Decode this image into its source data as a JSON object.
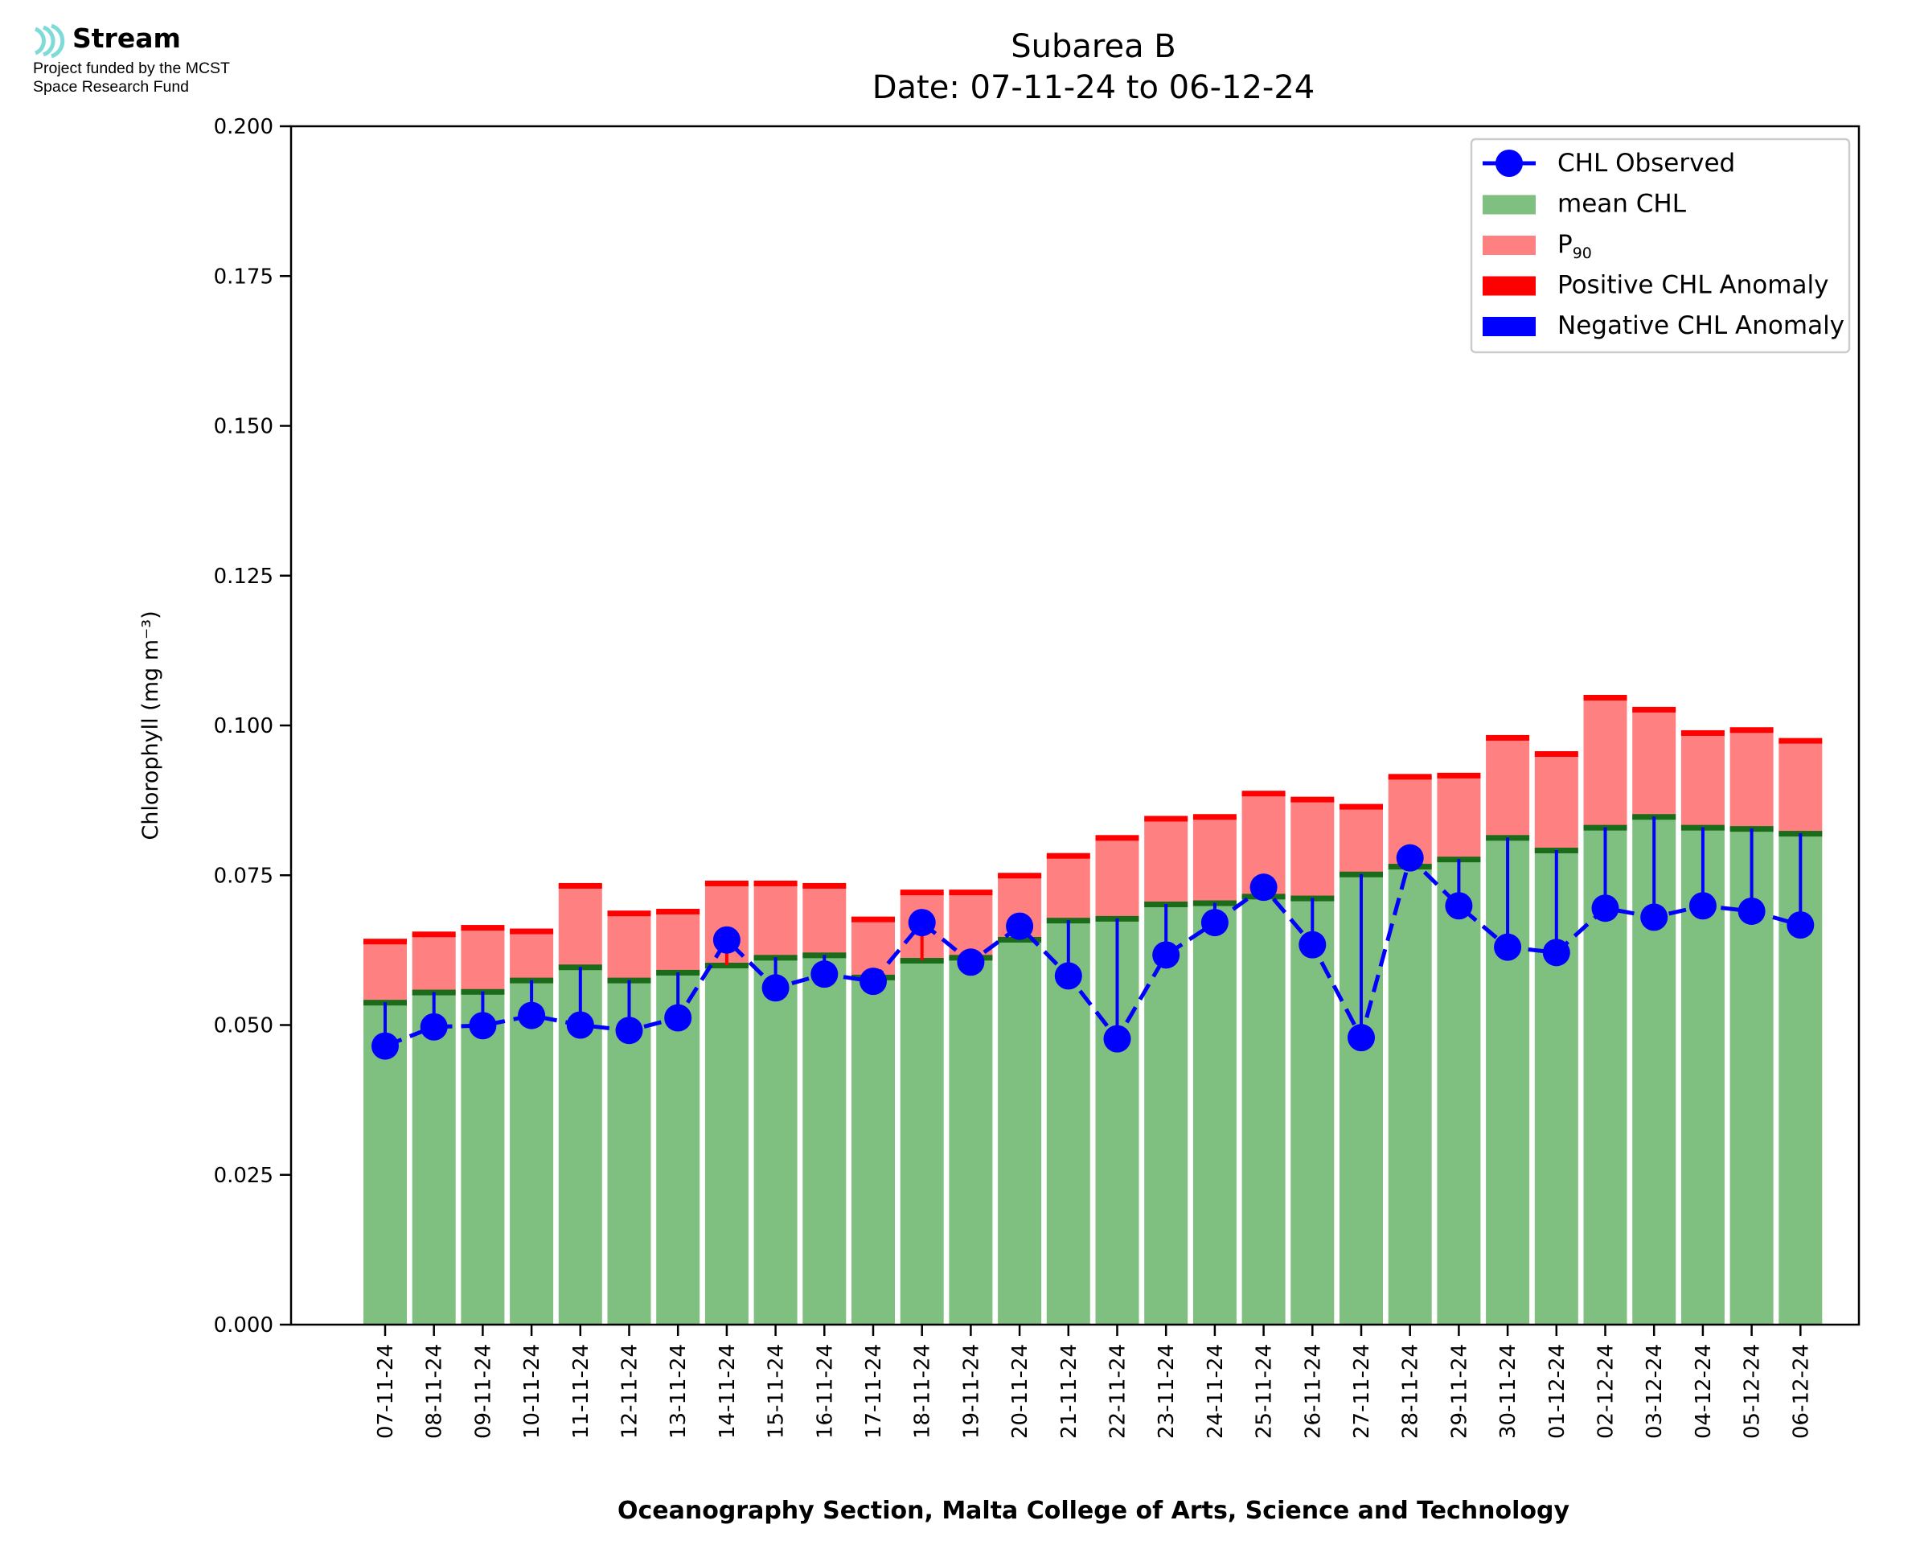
{
  "logo": {
    "name": "Stream",
    "line1": "Project funded by the MCST",
    "line2": "Space Research Fund",
    "color": "#7fdbd8"
  },
  "chart_data": {
    "type": "bar",
    "title": "Subarea B",
    "subtitle": "Date: 07-11-24 to 06-12-24",
    "xlabel": "Oceanography Section, Malta College of Arts, Science and Technology",
    "ylabel": "Chlorophyll (mg m⁻³)",
    "ylim": [
      0,
      0.2
    ],
    "yticks": [
      "0.000",
      "0.025",
      "0.050",
      "0.075",
      "0.100",
      "0.125",
      "0.150",
      "0.175",
      "0.200"
    ],
    "legend_position": "top-right",
    "legend": [
      {
        "label": "CHL Observed",
        "kind": "line-marker",
        "color": "#0000ff"
      },
      {
        "label": "mean CHL",
        "kind": "patch",
        "color": "#7fbf7f"
      },
      {
        "label": "P",
        "sub": "90",
        "kind": "patch",
        "color": "#ff8080"
      },
      {
        "label": "Positive CHL Anomaly",
        "kind": "patch",
        "color": "#ff0000"
      },
      {
        "label": "Negative CHL Anomaly",
        "kind": "patch",
        "color": "#0000ff"
      }
    ],
    "colors": {
      "mean": "#7fbf7f",
      "mean_line": "#1a6b1a",
      "p90": "#ff8080",
      "p90_cap": "#ff0000",
      "observed": "#0000ff",
      "positive_anomaly": "#ff0000",
      "negative_anomaly": "#0000ff"
    },
    "categories": [
      "07-11-24",
      "08-11-24",
      "09-11-24",
      "10-11-24",
      "11-11-24",
      "12-11-24",
      "13-11-24",
      "14-11-24",
      "15-11-24",
      "16-11-24",
      "17-11-24",
      "18-11-24",
      "19-11-24",
      "20-11-24",
      "21-11-24",
      "22-11-24",
      "23-11-24",
      "24-11-24",
      "25-11-24",
      "26-11-24",
      "27-11-24",
      "28-11-24",
      "29-11-24",
      "30-11-24",
      "01-12-24",
      "02-12-24",
      "03-12-24",
      "04-12-24",
      "05-12-24",
      "06-12-24"
    ],
    "series": [
      {
        "name": "mean CHL",
        "values": [
          0.0538,
          0.0555,
          0.0556,
          0.0575,
          0.0597,
          0.0575,
          0.0588,
          0.06,
          0.0613,
          0.0617,
          0.058,
          0.0608,
          0.0613,
          0.0643,
          0.0675,
          0.0678,
          0.0702,
          0.0704,
          0.0715,
          0.0712,
          0.0752,
          0.0765,
          0.0777,
          0.0813,
          0.0792,
          0.083,
          0.0848,
          0.083,
          0.0828,
          0.082
        ]
      },
      {
        "name": "P90",
        "values": [
          0.064,
          0.0652,
          0.0663,
          0.0657,
          0.0733,
          0.0687,
          0.069,
          0.0737,
          0.0737,
          0.0733,
          0.0677,
          0.0722,
          0.0722,
          0.075,
          0.0783,
          0.0813,
          0.0845,
          0.0848,
          0.0887,
          0.0877,
          0.0865,
          0.0915,
          0.0917,
          0.098,
          0.0953,
          0.1047,
          0.1027,
          0.0988,
          0.0993,
          0.0975
        ]
      },
      {
        "name": "CHL Observed",
        "values": [
          0.0465,
          0.0497,
          0.0499,
          0.0516,
          0.05,
          0.0491,
          0.0512,
          0.0642,
          0.0562,
          0.0585,
          0.0573,
          0.0671,
          0.0605,
          0.0665,
          0.0582,
          0.0477,
          0.0617,
          0.0671,
          0.073,
          0.0634,
          0.0479,
          0.0779,
          0.0699,
          0.063,
          0.0621,
          0.0695,
          0.068,
          0.0699,
          0.069,
          0.0667
        ]
      }
    ]
  }
}
